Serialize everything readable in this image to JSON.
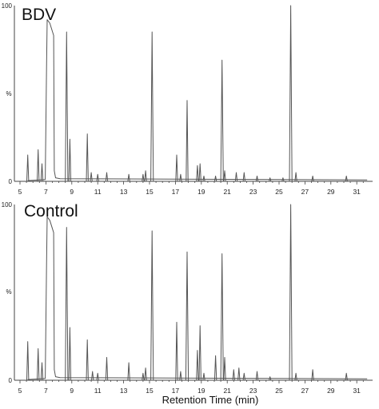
{
  "chart_data": [
    {
      "type": "line",
      "title": "BDV",
      "ylabel": "%",
      "xlabel": "",
      "xlim": [
        5,
        32
      ],
      "ylim": [
        0,
        100
      ],
      "x_ticks": [
        "5",
        "7",
        "9",
        "11",
        "13",
        "15",
        "17",
        "19",
        "21",
        "23",
        "25",
        "27",
        "29",
        "31"
      ],
      "y_ticks": [
        "0",
        "100"
      ],
      "plateau": {
        "start": 7.1,
        "end": 7.6,
        "value": 92
      },
      "peaks": [
        {
          "rt": 5.6,
          "value": 15
        },
        {
          "rt": 6.4,
          "value": 18
        },
        {
          "rt": 6.7,
          "value": 10
        },
        {
          "rt": 8.6,
          "value": 85
        },
        {
          "rt": 8.85,
          "value": 24
        },
        {
          "rt": 10.2,
          "value": 27
        },
        {
          "rt": 10.5,
          "value": 5
        },
        {
          "rt": 11.0,
          "value": 4
        },
        {
          "rt": 11.7,
          "value": 5
        },
        {
          "rt": 13.4,
          "value": 4
        },
        {
          "rt": 14.5,
          "value": 4
        },
        {
          "rt": 14.7,
          "value": 6
        },
        {
          "rt": 15.2,
          "value": 85
        },
        {
          "rt": 17.1,
          "value": 15
        },
        {
          "rt": 17.4,
          "value": 4
        },
        {
          "rt": 17.9,
          "value": 46
        },
        {
          "rt": 18.7,
          "value": 9
        },
        {
          "rt": 18.9,
          "value": 10
        },
        {
          "rt": 19.2,
          "value": 3
        },
        {
          "rt": 20.1,
          "value": 3
        },
        {
          "rt": 20.6,
          "value": 69
        },
        {
          "rt": 20.8,
          "value": 6
        },
        {
          "rt": 21.7,
          "value": 5
        },
        {
          "rt": 22.3,
          "value": 5
        },
        {
          "rt": 23.3,
          "value": 3
        },
        {
          "rt": 24.3,
          "value": 2
        },
        {
          "rt": 25.3,
          "value": 2
        },
        {
          "rt": 25.9,
          "value": 100
        },
        {
          "rt": 26.3,
          "value": 5
        },
        {
          "rt": 27.6,
          "value": 3
        },
        {
          "rt": 30.2,
          "value": 3
        }
      ]
    },
    {
      "type": "line",
      "title": "Control",
      "ylabel": "%",
      "xlabel": "Retention Time (min)",
      "xlim": [
        5,
        32
      ],
      "ylim": [
        0,
        100
      ],
      "x_ticks": [
        "5",
        "7",
        "9",
        "11",
        "13",
        "15",
        "17",
        "19",
        "21",
        "23",
        "25",
        "27",
        "29",
        "31"
      ],
      "y_ticks": [
        "0",
        "100"
      ],
      "plateau": {
        "start": 7.1,
        "end": 7.6,
        "value": 93
      },
      "peaks": [
        {
          "rt": 5.6,
          "value": 22
        },
        {
          "rt": 6.4,
          "value": 18
        },
        {
          "rt": 6.7,
          "value": 10
        },
        {
          "rt": 8.6,
          "value": 87
        },
        {
          "rt": 8.85,
          "value": 30
        },
        {
          "rt": 10.2,
          "value": 23
        },
        {
          "rt": 10.6,
          "value": 5
        },
        {
          "rt": 11.0,
          "value": 4
        },
        {
          "rt": 11.7,
          "value": 13
        },
        {
          "rt": 13.4,
          "value": 10
        },
        {
          "rt": 14.5,
          "value": 4
        },
        {
          "rt": 14.7,
          "value": 7
        },
        {
          "rt": 15.2,
          "value": 85
        },
        {
          "rt": 17.1,
          "value": 33
        },
        {
          "rt": 17.4,
          "value": 5
        },
        {
          "rt": 17.9,
          "value": 73
        },
        {
          "rt": 18.7,
          "value": 17
        },
        {
          "rt": 18.9,
          "value": 31
        },
        {
          "rt": 19.2,
          "value": 4
        },
        {
          "rt": 20.1,
          "value": 14
        },
        {
          "rt": 20.6,
          "value": 72
        },
        {
          "rt": 20.8,
          "value": 13
        },
        {
          "rt": 21.5,
          "value": 6
        },
        {
          "rt": 21.9,
          "value": 7
        },
        {
          "rt": 22.3,
          "value": 4
        },
        {
          "rt": 23.3,
          "value": 5
        },
        {
          "rt": 24.3,
          "value": 2
        },
        {
          "rt": 25.9,
          "value": 100
        },
        {
          "rt": 26.3,
          "value": 4
        },
        {
          "rt": 27.6,
          "value": 6
        },
        {
          "rt": 30.2,
          "value": 4
        }
      ]
    }
  ]
}
